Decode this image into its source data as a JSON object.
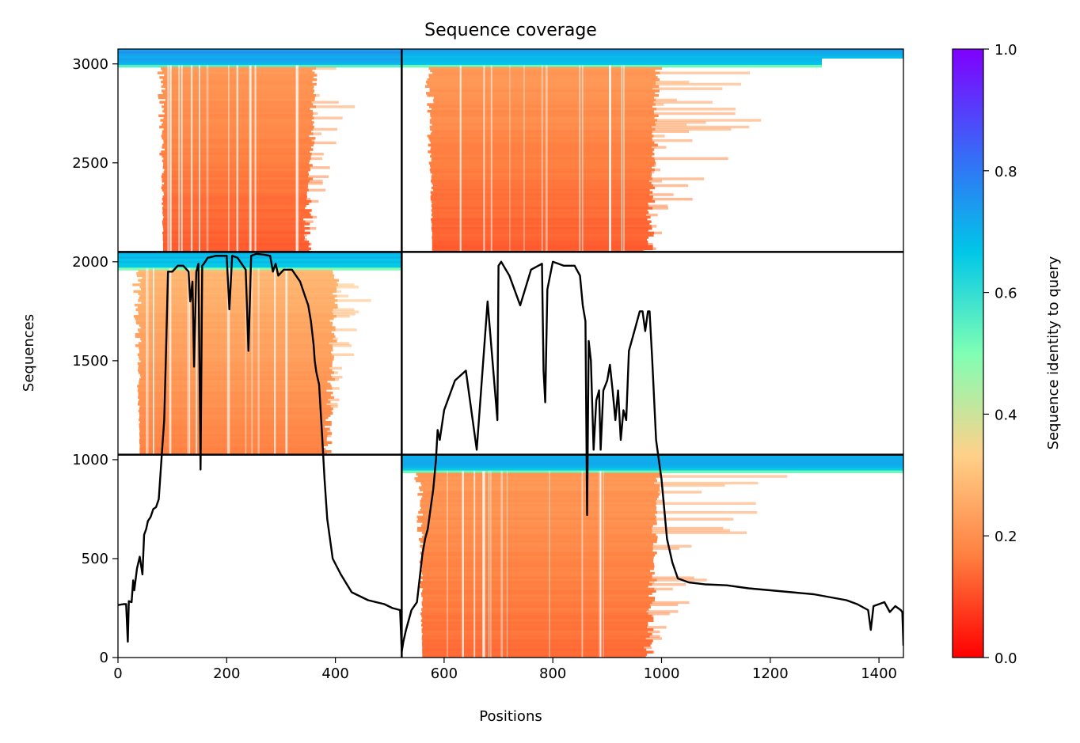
{
  "chart_data": {
    "type": "heatmap",
    "title": "Sequence coverage",
    "xlabel": "Positions",
    "ylabel": "Sequences",
    "xlim": [
      0,
      1445
    ],
    "ylim": [
      0,
      3075
    ],
    "xticks": [
      0,
      200,
      400,
      600,
      800,
      1000,
      1200,
      1400
    ],
    "yticks": [
      0,
      500,
      1000,
      1500,
      2000,
      2500,
      3000
    ],
    "grid": false,
    "colorbar": {
      "label": "Sequence identity to query",
      "range": [
        0.0,
        1.0
      ],
      "ticks": [
        "0.0",
        "0.2",
        "0.4",
        "0.6",
        "0.8",
        "1.0"
      ],
      "colormap": "rainbow_r",
      "colors": [
        "#ff0000",
        "#ff7f40",
        "#ffd18a",
        "#7fffb4",
        "#00c7e8",
        "#3a66f8",
        "#8000ff"
      ]
    },
    "block_boundaries": {
      "position": 522,
      "sequences": [
        1025,
        2050
      ]
    },
    "blocks": [
      {
        "rows": [
          2050,
          3075
        ],
        "positions": [
          0,
          522
        ],
        "core_columns": [
          83,
          357
        ],
        "identity_low": 0.12,
        "identity_high": 0.22,
        "top_band_identity": 0.75
      },
      {
        "rows": [
          2050,
          3075
        ],
        "positions": [
          522,
          1445
        ],
        "core_columns": [
          578,
          985
        ],
        "identity_low": 0.12,
        "identity_high": 0.22,
        "top_band_identity": 0.72
      },
      {
        "rows": [
          1025,
          2050
        ],
        "positions": [
          0,
          522
        ],
        "core_columns": [
          40,
          395
        ],
        "identity_low": 0.17,
        "identity_high": 0.28,
        "top_band_identity": 0.7
      },
      {
        "rows": [
          0,
          1025
        ],
        "positions": [
          522,
          1445
        ],
        "core_columns": [
          560,
          985
        ],
        "identity_low": 0.14,
        "identity_high": 0.22,
        "top_band_identity": 0.72
      }
    ],
    "coverage_series": {
      "name": "",
      "color": "#000000",
      "x": [
        0,
        10,
        15,
        18,
        20,
        25,
        28,
        30,
        35,
        40,
        45,
        48,
        52,
        55,
        60,
        65,
        70,
        75,
        80,
        85,
        88,
        92,
        100,
        110,
        120,
        130,
        133,
        137,
        140,
        144,
        148,
        152,
        155,
        158,
        165,
        180,
        190,
        200,
        205,
        210,
        220,
        235,
        240,
        245,
        255,
        270,
        280,
        285,
        290,
        295,
        305,
        320,
        335,
        345,
        350,
        355,
        360,
        362,
        365,
        370,
        375,
        380,
        385,
        395,
        410,
        430,
        460,
        490,
        505,
        519,
        522,
        525,
        530,
        540,
        550,
        555,
        560,
        565,
        570,
        575,
        580,
        585,
        588,
        592,
        600,
        620,
        640,
        660,
        680,
        698,
        700,
        705,
        720,
        740,
        760,
        780,
        783,
        786,
        790,
        800,
        820,
        840,
        850,
        855,
        860,
        863,
        866,
        870,
        875,
        880,
        885,
        888,
        893,
        900,
        905,
        910,
        915,
        920,
        925,
        930,
        935,
        940,
        950,
        955,
        960,
        965,
        970,
        975,
        978,
        983,
        990,
        1000,
        1010,
        1020,
        1030,
        1050,
        1080,
        1120,
        1160,
        1200,
        1240,
        1280,
        1300,
        1320,
        1340,
        1360,
        1380,
        1385,
        1390,
        1400,
        1410,
        1420,
        1430,
        1440,
        1443,
        1445
      ],
      "y": [
        265,
        270,
        270,
        80,
        285,
        280,
        390,
        340,
        450,
        510,
        420,
        620,
        650,
        690,
        710,
        750,
        760,
        800,
        1000,
        1200,
        1500,
        1950,
        1950,
        1980,
        1980,
        1950,
        1800,
        1900,
        1470,
        1950,
        1990,
        950,
        1980,
        1990,
        2020,
        2030,
        2030,
        2030,
        1760,
        2030,
        2020,
        1960,
        1550,
        2030,
        2040,
        2035,
        2030,
        1950,
        1990,
        1930,
        1960,
        1960,
        1900,
        1820,
        1780,
        1700,
        1580,
        1500,
        1440,
        1380,
        1150,
        900,
        700,
        500,
        420,
        330,
        290,
        270,
        250,
        240,
        30,
        80,
        140,
        240,
        280,
        400,
        520,
        600,
        650,
        750,
        850,
        1000,
        1150,
        1100,
        1250,
        1400,
        1450,
        1050,
        1800,
        1200,
        1980,
        2000,
        1930,
        1780,
        1960,
        1990,
        1450,
        1290,
        1860,
        2000,
        1980,
        1980,
        1930,
        1780,
        1700,
        720,
        1600,
        1500,
        1050,
        1300,
        1350,
        1050,
        1350,
        1400,
        1480,
        1350,
        1200,
        1350,
        1100,
        1250,
        1200,
        1550,
        1650,
        1700,
        1750,
        1750,
        1650,
        1750,
        1750,
        1500,
        1100,
        900,
        600,
        480,
        400,
        380,
        370,
        365,
        350,
        340,
        330,
        320,
        310,
        300,
        290,
        270,
        240,
        140,
        260,
        270,
        280,
        230,
        260,
        240,
        230,
        60
      ]
    }
  }
}
